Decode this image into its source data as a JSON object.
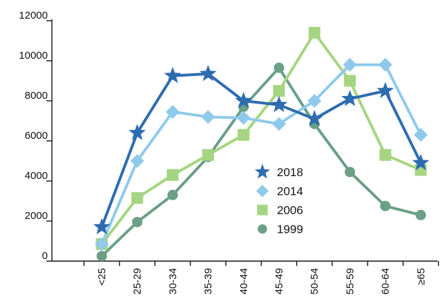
{
  "chart_data": {
    "type": "line",
    "title": "",
    "xlabel": "",
    "ylabel": "",
    "categories": [
      "<25",
      "25-29",
      "30-34",
      "35-39",
      "40-44",
      "45-49",
      "50-54",
      "55-59",
      "60-64",
      "≥65"
    ],
    "ylim": [
      0,
      12000
    ],
    "y_ticks": [
      0,
      2000,
      4000,
      6000,
      8000,
      10000,
      12000
    ],
    "y_tick_labels": [
      "0",
      "2000",
      "4000",
      "6000",
      "8000",
      "10000",
      "12000"
    ],
    "grid": false,
    "legend_position": "center-right",
    "series": [
      {
        "name": "2018",
        "color": "#2e6cb0",
        "marker": "star",
        "values": [
          1700,
          6400,
          9250,
          9350,
          8000,
          7800,
          7100,
          8100,
          8500,
          4900
        ]
      },
      {
        "name": "2014",
        "color": "#8fcaeb",
        "marker": "diamond",
        "values": [
          850,
          5000,
          7450,
          7200,
          7150,
          6850,
          8000,
          9800,
          9800,
          6300
        ]
      },
      {
        "name": "2006",
        "color": "#a5d582",
        "marker": "square",
        "values": [
          850,
          3150,
          4300,
          5300,
          6300,
          8500,
          11400,
          9000,
          5300,
          4550
        ]
      },
      {
        "name": "1999",
        "color": "#6b9f86",
        "marker": "circle",
        "values": [
          250,
          1950,
          3300,
          5200,
          7700,
          9650,
          6850,
          4450,
          2750,
          2300
        ]
      }
    ]
  }
}
